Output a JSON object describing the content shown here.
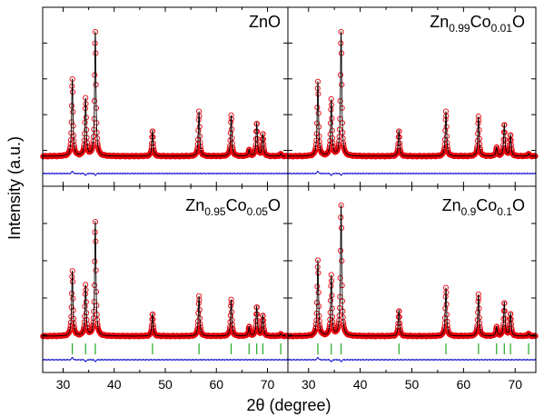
{
  "chart_data": {
    "type": "line",
    "layout": "2x2 shared axes",
    "xlabel": "2θ (degree)",
    "ylabel": "Intensity (a.u.)",
    "xlim": [
      26,
      74
    ],
    "x_ticks": [
      30,
      40,
      50,
      60,
      70
    ],
    "ylim": [
      0,
      1
    ],
    "series_styles": {
      "observed": {
        "color": "#e8000b",
        "marker": "open-circle"
      },
      "calculated": {
        "color": "#000000",
        "line": "solid"
      },
      "difference": {
        "color": "#0000cc",
        "line": "solid"
      },
      "bragg_positions": {
        "color": "#22aa22",
        "marker": "vertical-tick"
      }
    },
    "peak_positions": [
      31.8,
      34.4,
      36.3,
      47.5,
      56.6,
      62.9,
      66.4,
      67.9,
      69.1,
      72.6
    ],
    "panels": [
      {
        "id": "ZnO",
        "label_parts": [
          {
            "t": "ZnO",
            "sub": false
          }
        ],
        "peak_intensities": [
          0.62,
          0.46,
          1.0,
          0.21,
          0.36,
          0.33,
          0.05,
          0.27,
          0.18,
          0.02
        ],
        "show_bragg_ticks": false
      },
      {
        "id": "Zn0.99Co0.01O",
        "label_parts": [
          {
            "t": "Zn",
            "sub": false
          },
          {
            "t": "0.99",
            "sub": true
          },
          {
            "t": "Co",
            "sub": false
          },
          {
            "t": "0.01",
            "sub": true
          },
          {
            "t": "O",
            "sub": false
          }
        ],
        "peak_intensities": [
          0.6,
          0.45,
          1.0,
          0.21,
          0.36,
          0.32,
          0.07,
          0.26,
          0.17,
          0.02
        ],
        "show_bragg_ticks": false
      },
      {
        "id": "Zn0.95Co0.05O",
        "label_parts": [
          {
            "t": "Zn",
            "sub": false
          },
          {
            "t": "0.95",
            "sub": true
          },
          {
            "t": "Co",
            "sub": false
          },
          {
            "t": "0.05",
            "sub": true
          },
          {
            "t": "O",
            "sub": false
          }
        ],
        "peak_intensities": [
          0.57,
          0.44,
          1.0,
          0.2,
          0.35,
          0.32,
          0.08,
          0.26,
          0.18,
          0.02
        ],
        "show_bragg_ticks": true
      },
      {
        "id": "Zn0.9Co0.1O",
        "label_parts": [
          {
            "t": "Zn",
            "sub": false
          },
          {
            "t": "0.9",
            "sub": true
          },
          {
            "t": "Co",
            "sub": false
          },
          {
            "t": "0.1",
            "sub": true
          },
          {
            "t": "O",
            "sub": false
          }
        ],
        "peak_intensities": [
          0.58,
          0.46,
          1.0,
          0.2,
          0.37,
          0.32,
          0.07,
          0.26,
          0.17,
          0.02
        ],
        "show_bragg_ticks": true
      }
    ]
  }
}
